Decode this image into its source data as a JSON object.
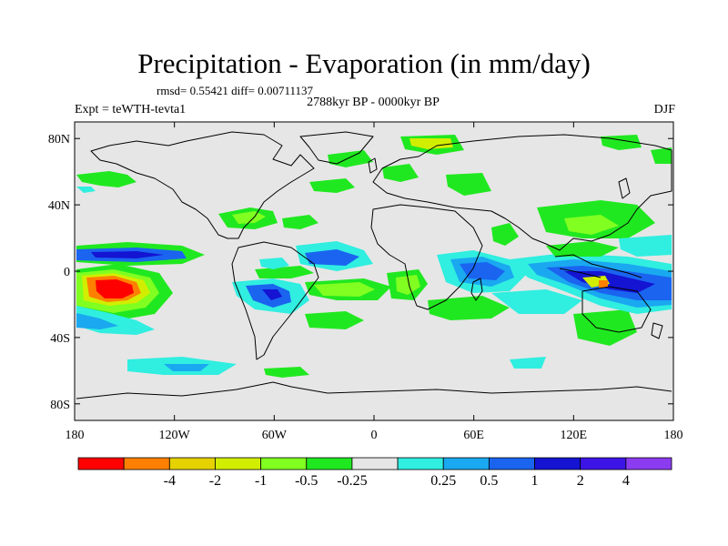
{
  "header": {
    "title": "Precipitation - Evaporation (in mm/day)",
    "stats": "rmsd= 0.55421 diff= 0.00711137",
    "subtitle": "2788kyr BP - 0000kyr BP",
    "experiment": "Expt = teWTH-tevta1",
    "season": "DJF"
  },
  "map": {
    "projection": "cylindrical-equidistant",
    "lon_range": [
      -180,
      180
    ],
    "lat_range": [
      -90,
      90
    ],
    "ocean_fill": "#e6e6e6",
    "coastline_color": "#000000",
    "lat_ticks": [
      {
        "lat": 80,
        "label": "80N"
      },
      {
        "lat": 40,
        "label": "40N"
      },
      {
        "lat": 0,
        "label": "0"
      },
      {
        "lat": -40,
        "label": "40S"
      },
      {
        "lat": -80,
        "label": "80S"
      }
    ],
    "lon_ticks": [
      {
        "lon": -180,
        "label": "180"
      },
      {
        "lon": -120,
        "label": "120W"
      },
      {
        "lon": -60,
        "label": "60W"
      },
      {
        "lon": 0,
        "label": "0"
      },
      {
        "lon": 60,
        "label": "60E"
      },
      {
        "lon": 120,
        "label": "120E"
      },
      {
        "lon": 180,
        "label": "180"
      }
    ]
  },
  "colorbar": {
    "colors": [
      "#ff0000",
      "#ff8000",
      "#e6d200",
      "#d2ee00",
      "#80ff20",
      "#20e820",
      "#e6e6e6",
      "#30eee0",
      "#1aa8f0",
      "#1a64f0",
      "#1414d2",
      "#3c14e6",
      "#8c3cf0"
    ],
    "labels": [
      "-4",
      "-2",
      "-1",
      "-0.5",
      "-0.25",
      "0.25",
      "0.5",
      "1",
      "2",
      "4"
    ]
  }
}
